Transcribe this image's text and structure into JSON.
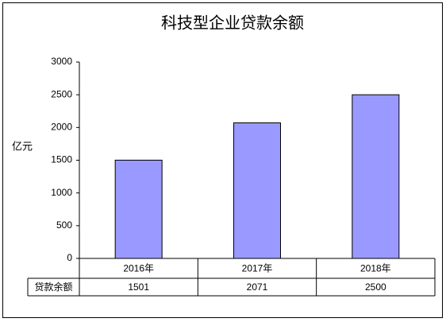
{
  "chart_data": {
    "type": "bar",
    "title": "科技型企业贷款余额",
    "y_label": "亿元",
    "categories": [
      "2016年",
      "2017年",
      "2018年"
    ],
    "series": [
      {
        "name": "贷款余额",
        "color": "#9999ff",
        "values": [
          1501,
          2071,
          2500
        ]
      }
    ],
    "ylim": [
      0,
      3000
    ],
    "yticks": [
      0,
      500,
      1000,
      1500,
      2000,
      2500,
      3000
    ],
    "grid": false
  }
}
